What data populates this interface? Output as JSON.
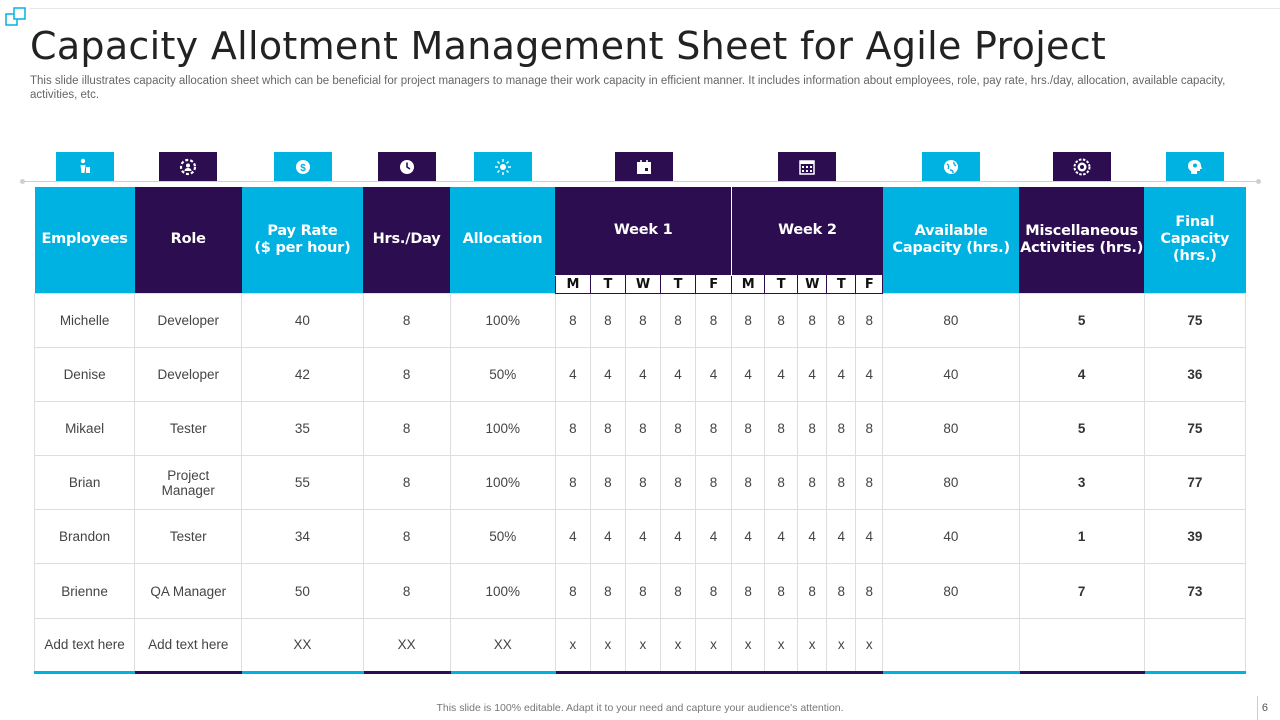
{
  "slide": {
    "title": "Capacity Allotment Management Sheet for Agile Project",
    "subtitle": "This slide illustrates capacity allocation sheet which can be beneficial for project managers to manage their work capacity in efficient manner. It includes information about employees, role, pay rate, hrs./day, allocation, available capacity, activities, etc.",
    "footer": "This slide is 100% editable.  Adapt it to your need and capture your audience's attention.",
    "page_number": "6"
  },
  "colors": {
    "cyan": "#00b2e1",
    "purple": "#2c0d4f"
  },
  "header_icons": [
    "person-icon",
    "gear-person-icon",
    "dollar-coin-icon",
    "clock-icon",
    "sun-network-icon",
    "calendar-icon",
    "calendar-grid-icon",
    "globe-icon",
    "badge-gear-icon",
    "head-gear-icon"
  ],
  "table": {
    "headers": {
      "employees": "Employees",
      "role": "Role",
      "pay_rate": "Pay Rate\n($ per hour)",
      "hrs_day": "Hrs./Day",
      "allocation": "Allocation",
      "week1": "Week 1",
      "week2": "Week 2",
      "available": "Available\nCapacity (hrs.)",
      "misc": "Miscellaneous\nActivities (hrs.)",
      "final": "Final\nCapacity\n(hrs.)"
    },
    "days": [
      "M",
      "T",
      "W",
      "T",
      "F"
    ],
    "rows": [
      {
        "employee": "Michelle",
        "role": "Developer",
        "pay_rate": "40",
        "hrs_day": "8",
        "allocation": "100%",
        "week1": [
          "8",
          "8",
          "8",
          "8",
          "8"
        ],
        "week2": [
          "8",
          "8",
          "8",
          "8",
          "8"
        ],
        "available": "80",
        "misc": "5",
        "final": "75"
      },
      {
        "employee": "Denise",
        "role": "Developer",
        "pay_rate": "42",
        "hrs_day": "8",
        "allocation": "50%",
        "week1": [
          "4",
          "4",
          "4",
          "4",
          "4"
        ],
        "week2": [
          "4",
          "4",
          "4",
          "4",
          "4"
        ],
        "available": "40",
        "misc": "4",
        "final": "36"
      },
      {
        "employee": "Mikael",
        "role": "Tester",
        "pay_rate": "35",
        "hrs_day": "8",
        "allocation": "100%",
        "week1": [
          "8",
          "8",
          "8",
          "8",
          "8"
        ],
        "week2": [
          "8",
          "8",
          "8",
          "8",
          "8"
        ],
        "available": "80",
        "misc": "5",
        "final": "75"
      },
      {
        "employee": "Brian",
        "role": "Project\nManager",
        "pay_rate": "55",
        "hrs_day": "8",
        "allocation": "100%",
        "week1": [
          "8",
          "8",
          "8",
          "8",
          "8"
        ],
        "week2": [
          "8",
          "8",
          "8",
          "8",
          "8"
        ],
        "available": "80",
        "misc": "3",
        "final": "77"
      },
      {
        "employee": "Brandon",
        "role": "Tester",
        "pay_rate": "34",
        "hrs_day": "8",
        "allocation": "50%",
        "week1": [
          "4",
          "4",
          "4",
          "4",
          "4"
        ],
        "week2": [
          "4",
          "4",
          "4",
          "4",
          "4"
        ],
        "available": "40",
        "misc": "1",
        "final": "39"
      },
      {
        "employee": "Brienne",
        "role": "QA Manager",
        "pay_rate": "50",
        "hrs_day": "8",
        "allocation": "100%",
        "week1": [
          "8",
          "8",
          "8",
          "8",
          "8"
        ],
        "week2": [
          "8",
          "8",
          "8",
          "8",
          "8"
        ],
        "available": "80",
        "misc": "7",
        "final": "73"
      },
      {
        "employee": "Add text here",
        "role": "Add text here",
        "pay_rate": "XX",
        "hrs_day": "XX",
        "allocation": "XX",
        "week1": [
          "x",
          "x",
          "x",
          "x",
          "x"
        ],
        "week2": [
          "x",
          "x",
          "x",
          "x",
          "x"
        ],
        "available": "",
        "misc": "",
        "final": ""
      }
    ]
  }
}
